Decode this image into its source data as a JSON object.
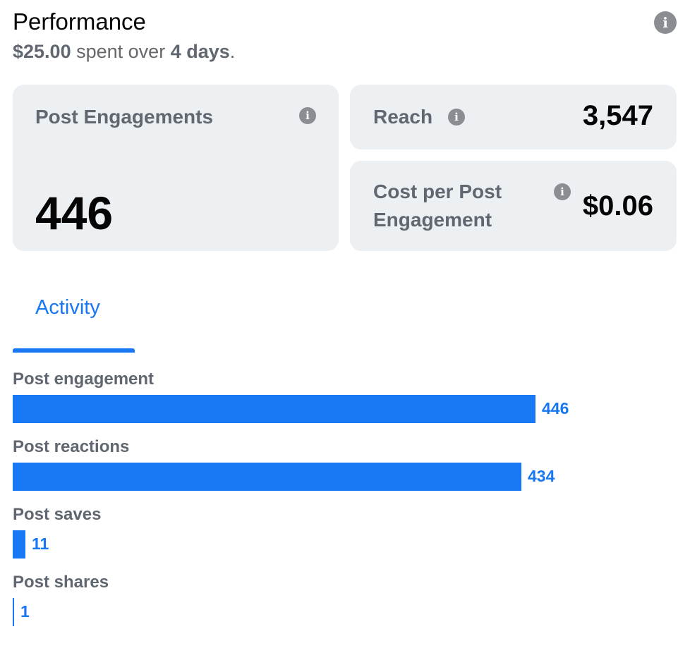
{
  "header": {
    "title": "Performance",
    "spend_amount": "$25.00",
    "spend_middle": "spent over",
    "duration": "4 days",
    "period_end": ".",
    "info_icon": "info-icon"
  },
  "metrics": {
    "post_engagements": {
      "label": "Post Engagements",
      "value": "446"
    },
    "reach": {
      "label": "Reach",
      "value": "3,547"
    },
    "cost_per_engagement": {
      "label_line1": "Cost per Post",
      "label_line2": "Engagement",
      "value": "$0.06"
    }
  },
  "tabs": [
    {
      "label": "Activity",
      "active": true
    }
  ],
  "activity": {
    "max_value": 446,
    "rows": [
      {
        "label": "Post engagement",
        "value": 446,
        "display": "446"
      },
      {
        "label": "Post reactions",
        "value": 434,
        "display": "434"
      },
      {
        "label": "Post saves",
        "value": 11,
        "display": "11"
      },
      {
        "label": "Post shares",
        "value": 1,
        "display": "1"
      }
    ]
  },
  "colors": {
    "accent": "#1877f2",
    "card_bg": "#edf0f3",
    "muted_text": "#606770",
    "icon_gray": "#8a8d91"
  }
}
